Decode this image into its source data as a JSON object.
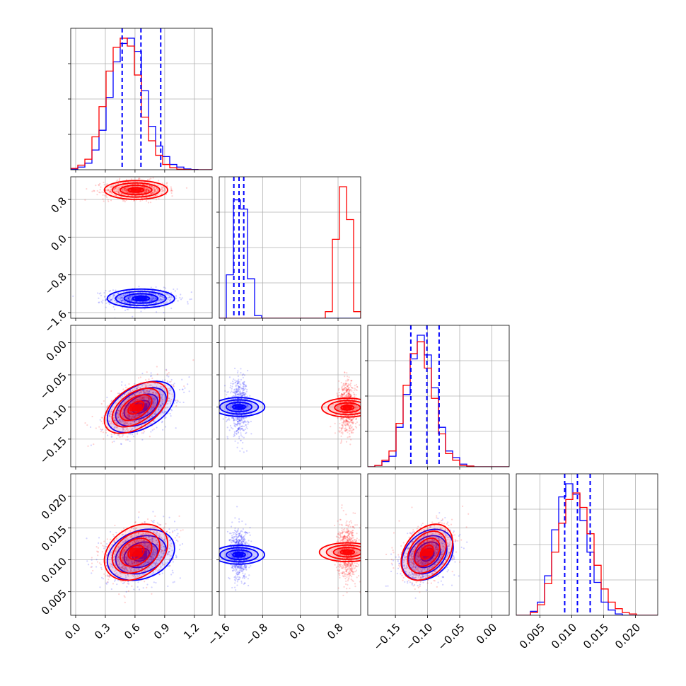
{
  "chart_data": {
    "type": "corner",
    "grid": true,
    "series": [
      {
        "name": "",
        "color": "#0000ff",
        "mean": [
          0.66,
          -1.3,
          -0.1,
          0.0108
        ],
        "std": [
          0.17,
          0.1,
          0.02,
          0.002
        ],
        "corr": {
          "0-2": 0.45,
          "0-3": 0.25,
          "2-3": 0.3
        },
        "quantiles": [
          [
            0.47,
            0.66,
            0.86
          ],
          [
            -1.41,
            -1.3,
            -1.2
          ],
          [
            -0.126,
            -0.101,
            -0.082
          ],
          [
            0.0089,
            0.0109,
            0.0129
          ]
        ]
      },
      {
        "name": "",
        "color": "#ff0000",
        "mean": [
          0.61,
          1.0,
          -0.101,
          0.0112
        ],
        "std": [
          0.16,
          0.1,
          0.02,
          0.0022
        ],
        "corr": {
          "0-2": 0.5,
          "0-3": 0.3,
          "2-3": 0.35
        },
        "quantiles": []
      }
    ],
    "dims": [
      {
        "range": [
          -0.05,
          1.38
        ],
        "ticks": [
          0.0,
          0.3,
          0.6,
          0.9,
          1.2
        ],
        "tick_labels": [
          "0.0",
          "0.3",
          "0.6",
          "0.9",
          "1.2"
        ]
      },
      {
        "range": [
          -1.72,
          1.28
        ],
        "ticks": [
          -1.6,
          -0.8,
          0.0,
          0.8
        ],
        "tick_labels": [
          "−1.6",
          "−0.8",
          "0.0",
          "0.8"
        ]
      },
      {
        "range": [
          -0.193,
          0.027
        ],
        "ticks": [
          -0.15,
          -0.1,
          -0.05,
          0.0
        ],
        "tick_labels": [
          "−0.15",
          "−0.10",
          "−0.05",
          "0.00"
        ]
      },
      {
        "range": [
          0.0013,
          0.0235
        ],
        "ticks": [
          0.005,
          0.01,
          0.015,
          0.02
        ],
        "tick_labels": [
          "0.005",
          "0.010",
          "0.015",
          "0.020"
        ]
      }
    ],
    "histograms": [
      {
        "dim": 0,
        "bin_edges_range": [
          -0.05,
          1.38
        ],
        "nbins": 20,
        "blue": [
          0.005,
          0.02,
          0.05,
          0.15,
          0.3,
          0.55,
          0.82,
          0.96,
          1.0,
          0.9,
          0.6,
          0.33,
          0.18,
          0.1,
          0.04,
          0.02,
          0.006,
          0.002,
          0,
          0
        ],
        "red": [
          0.01,
          0.035,
          0.08,
          0.25,
          0.48,
          0.75,
          0.93,
          1.0,
          0.94,
          0.72,
          0.4,
          0.22,
          0.11,
          0.04,
          0.015,
          0.004,
          0.001,
          0,
          0,
          0
        ]
      },
      {
        "dim": 1,
        "bin_edges_range": [
          -1.72,
          1.28
        ],
        "nbins": 20,
        "blue": [
          0,
          0.33,
          0.9,
          0.83,
          0.3,
          0.02,
          0,
          0,
          0,
          0,
          0,
          0,
          0,
          0,
          0,
          0,
          0,
          0,
          0,
          0
        ],
        "red": [
          0,
          0,
          0,
          0,
          0,
          0,
          0,
          0,
          0,
          0,
          0,
          0,
          0,
          0,
          0,
          0.05,
          0.6,
          1.0,
          0.75,
          0.05
        ]
      },
      {
        "dim": 2,
        "bin_edges_range": [
          -0.193,
          0.027
        ],
        "nbins": 20,
        "blue": [
          0,
          0.01,
          0.04,
          0.08,
          0.3,
          0.55,
          0.82,
          1.0,
          0.85,
          0.6,
          0.3,
          0.12,
          0.07,
          0.02,
          0.005,
          0,
          0,
          0,
          0,
          0
        ],
        "red": [
          0,
          0.01,
          0.05,
          0.12,
          0.33,
          0.62,
          0.86,
          0.95,
          0.75,
          0.52,
          0.25,
          0.1,
          0.05,
          0.01,
          0.005,
          0,
          0,
          0,
          0,
          0
        ]
      },
      {
        "dim": 3,
        "bin_edges_range": [
          0.0013,
          0.0235
        ],
        "nbins": 20,
        "blue": [
          0,
          0,
          0.03,
          0.1,
          0.3,
          0.65,
          0.9,
          1.0,
          0.92,
          0.72,
          0.48,
          0.25,
          0.1,
          0.04,
          0.01,
          0,
          0,
          0,
          0,
          0
        ],
        "red": [
          0,
          0,
          0.02,
          0.08,
          0.24,
          0.48,
          0.7,
          0.88,
          0.93,
          0.82,
          0.62,
          0.38,
          0.2,
          0.1,
          0.05,
          0.02,
          0.01,
          0,
          0,
          0
        ]
      }
    ],
    "contour_levels_sigma": [
      0.5,
      1.0,
      1.5,
      2.0
    ]
  }
}
